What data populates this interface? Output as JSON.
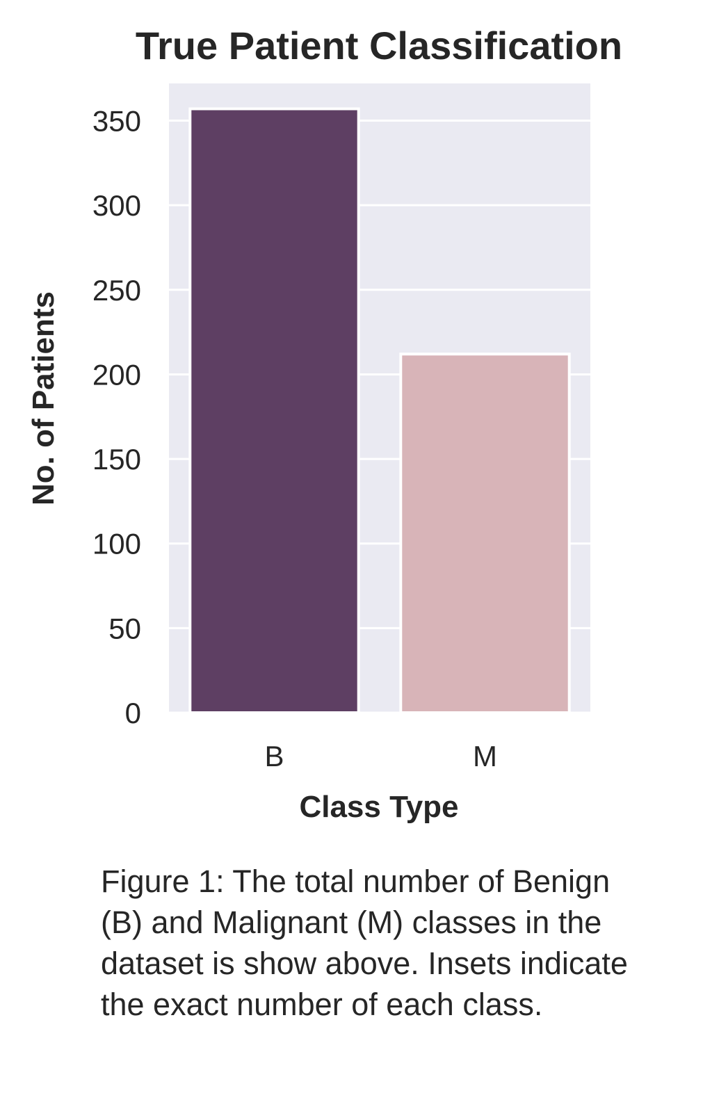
{
  "chart_data": {
    "type": "bar",
    "title": "True Patient Classification",
    "xlabel": "Class Type",
    "ylabel": "No. of Patients",
    "categories": [
      "B",
      "M"
    ],
    "values": [
      357,
      212
    ],
    "ylim": [
      0,
      372
    ],
    "yticks": [
      0,
      50,
      100,
      150,
      200,
      250,
      300,
      350
    ],
    "grid": true,
    "colors": {
      "plot_background": "#EAEAF2",
      "grid": "#FFFFFF",
      "bars": [
        "#5E3F63",
        "#D8B4B8"
      ],
      "bar_edge": "#FFFFFF"
    }
  },
  "caption": "Figure 1: The total number of Benign (B) and Malignant (M) classes in the dataset is show above. Insets indicate the exact number of each class."
}
